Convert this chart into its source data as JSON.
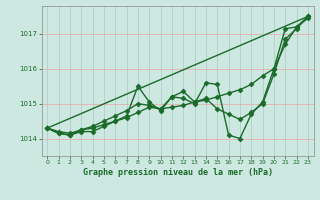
{
  "background_color": "#cce8e0",
  "grid_color_h": "#e8b0b0",
  "grid_color_v": "#b0d0c8",
  "line_color": "#1a6b2a",
  "title": "Graphe pression niveau de la mer (hPa)",
  "xlim": [
    -0.5,
    23.5
  ],
  "ylim": [
    1013.5,
    1017.8
  ],
  "yticks": [
    1014,
    1015,
    1016,
    1017
  ],
  "xticks": [
    0,
    1,
    2,
    3,
    4,
    5,
    6,
    7,
    8,
    9,
    10,
    11,
    12,
    13,
    14,
    15,
    16,
    17,
    18,
    19,
    20,
    21,
    22,
    23
  ],
  "series": [
    {
      "x": [
        0,
        23
      ],
      "y": [
        1014.3,
        1017.5
      ],
      "marker": null,
      "lw": 1.0
    },
    {
      "x": [
        0,
        1,
        2,
        3,
        4,
        5,
        6,
        7,
        8,
        9,
        10,
        11,
        12,
        13,
        14,
        15,
        16,
        17,
        18,
        19,
        20,
        21,
        22,
        23
      ],
      "y": [
        1014.3,
        1014.2,
        1014.15,
        1014.25,
        1014.3,
        1014.4,
        1014.5,
        1014.6,
        1014.75,
        1014.9,
        1014.85,
        1014.9,
        1014.95,
        1015.05,
        1015.1,
        1015.2,
        1015.3,
        1015.4,
        1015.55,
        1015.8,
        1016.0,
        1016.7,
        1017.2,
        1017.45
      ],
      "marker": "D",
      "lw": 1.0
    },
    {
      "x": [
        0,
        1,
        2,
        3,
        4,
        5,
        6,
        7,
        8,
        9,
        10,
        11,
        12,
        13,
        14,
        15,
        16,
        17,
        18,
        19,
        20,
        21,
        22,
        23
      ],
      "y": [
        1014.3,
        1014.15,
        1014.1,
        1014.2,
        1014.2,
        1014.35,
        1014.5,
        1014.65,
        1015.5,
        1015.05,
        1014.8,
        1015.2,
        1015.15,
        1015.0,
        1015.6,
        1015.55,
        1014.1,
        1014.0,
        1014.7,
        1015.05,
        1016.0,
        1017.15,
        1017.2,
        1017.5
      ],
      "marker": "D",
      "lw": 1.0
    },
    {
      "x": [
        0,
        1,
        2,
        3,
        4,
        5,
        6,
        7,
        8,
        9,
        10,
        11,
        12,
        13,
        14,
        15,
        16,
        17,
        18,
        19,
        20,
        21,
        22,
        23
      ],
      "y": [
        1014.3,
        1014.15,
        1014.1,
        1014.25,
        1014.35,
        1014.5,
        1014.65,
        1014.8,
        1015.0,
        1014.95,
        1014.85,
        1015.2,
        1015.35,
        1015.05,
        1015.15,
        1014.85,
        1014.7,
        1014.55,
        1014.75,
        1015.0,
        1015.85,
        1016.85,
        1017.15,
        1017.5
      ],
      "marker": "D",
      "lw": 1.0
    }
  ],
  "figsize": [
    3.2,
    2.0
  ],
  "dpi": 100,
  "title_fontsize": 6.0,
  "tick_fontsize": 5.0
}
